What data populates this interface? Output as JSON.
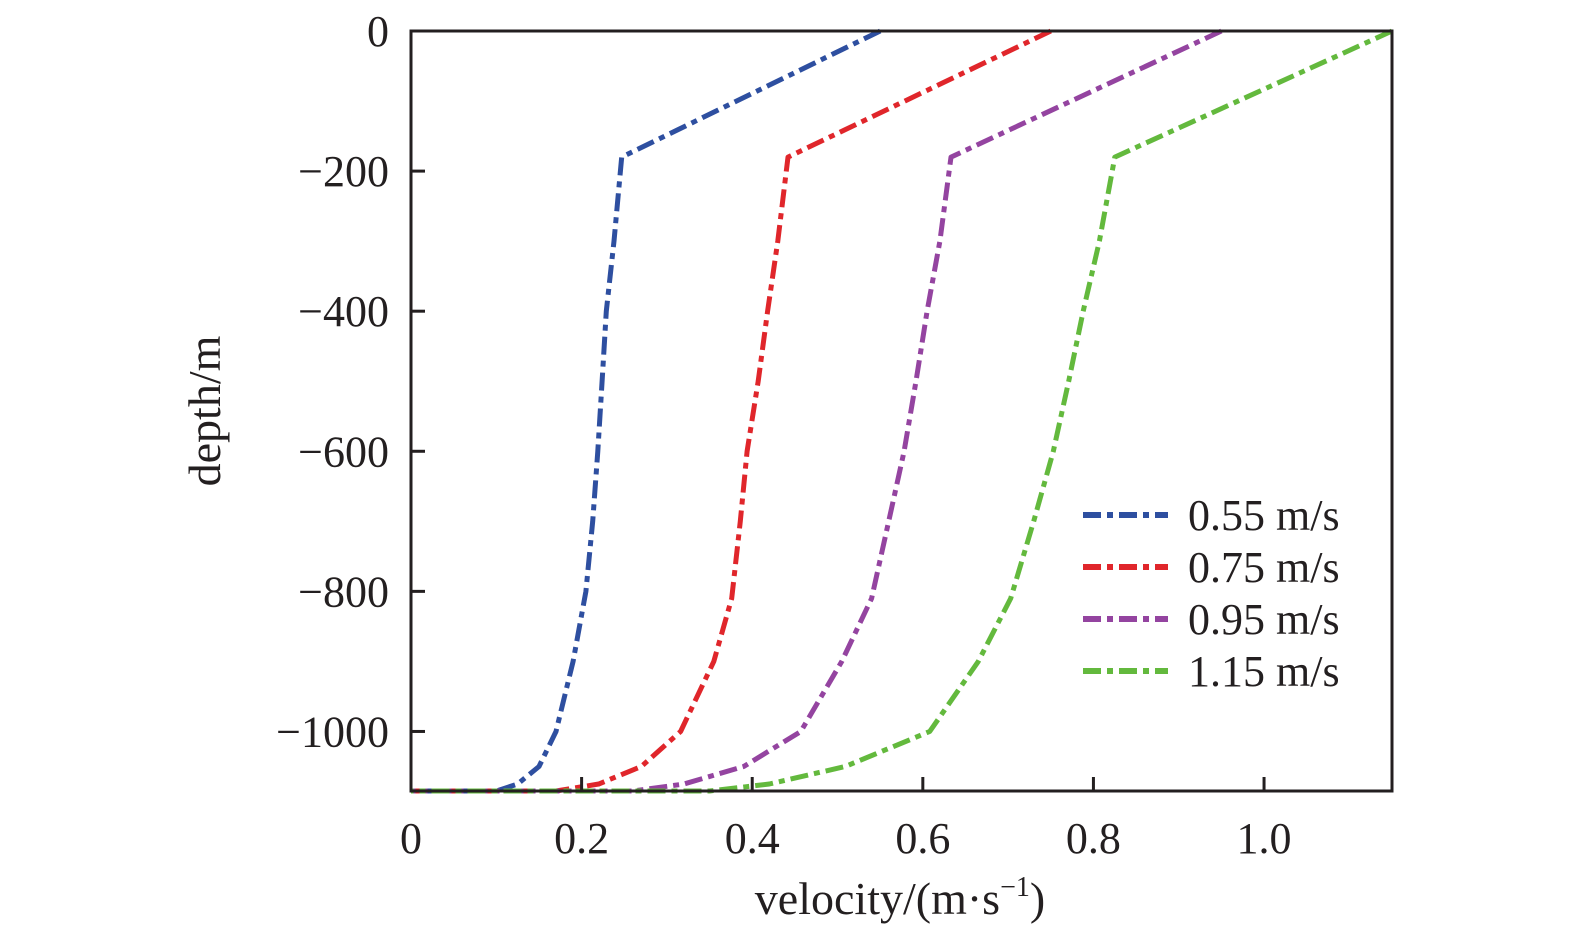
{
  "chart_data": {
    "type": "line",
    "title": "",
    "xlabel": "velocity/(m·s",
    "xlabel_sup": "−1",
    "xlabel_end": ")",
    "ylabel": "depth/m",
    "xlim": [
      0,
      1.15
    ],
    "ylim": [
      -1085,
      0
    ],
    "xticks": [
      0,
      0.2,
      0.4,
      0.6,
      0.8,
      1.0
    ],
    "xtick_labels": [
      "0",
      "0.2",
      "0.4",
      "0.6",
      "0.8",
      "1.0"
    ],
    "yticks": [
      0,
      -200,
      -400,
      -600,
      -800,
      -1000
    ],
    "ytick_labels": [
      "0",
      "−200",
      "−400",
      "−600",
      "−800",
      "−1000"
    ],
    "grid": false,
    "legend_position": "right",
    "line_style": "dash-dot",
    "series": [
      {
        "name": "0.55 m/s",
        "color": "#2e4fa0",
        "points": [
          [
            0.55,
            0
          ],
          [
            0.247,
            -180
          ],
          [
            0.238,
            -300
          ],
          [
            0.229,
            -400
          ],
          [
            0.224,
            -500
          ],
          [
            0.219,
            -600
          ],
          [
            0.213,
            -700
          ],
          [
            0.205,
            -800
          ],
          [
            0.19,
            -900
          ],
          [
            0.17,
            -1000
          ],
          [
            0.15,
            -1050
          ],
          [
            0.125,
            -1075
          ],
          [
            0.1,
            -1085
          ],
          [
            0,
            -1085
          ]
        ]
      },
      {
        "name": "0.75 m/s",
        "color": "#e0262b",
        "points": [
          [
            0.75,
            0
          ],
          [
            0.442,
            -180
          ],
          [
            0.43,
            -300
          ],
          [
            0.418,
            -400
          ],
          [
            0.407,
            -500
          ],
          [
            0.394,
            -600
          ],
          [
            0.386,
            -700
          ],
          [
            0.376,
            -810
          ],
          [
            0.355,
            -900
          ],
          [
            0.316,
            -1000
          ],
          [
            0.27,
            -1050
          ],
          [
            0.22,
            -1075
          ],
          [
            0.17,
            -1085
          ],
          [
            0,
            -1085
          ]
        ]
      },
      {
        "name": "0.95 m/s",
        "color": "#9444a0",
        "points": [
          [
            0.95,
            0
          ],
          [
            0.633,
            -180
          ],
          [
            0.62,
            -300
          ],
          [
            0.605,
            -400
          ],
          [
            0.592,
            -500
          ],
          [
            0.578,
            -600
          ],
          [
            0.56,
            -700
          ],
          [
            0.54,
            -810
          ],
          [
            0.505,
            -900
          ],
          [
            0.457,
            -1000
          ],
          [
            0.39,
            -1050
          ],
          [
            0.32,
            -1075
          ],
          [
            0.26,
            -1085
          ],
          [
            0,
            -1085
          ]
        ]
      },
      {
        "name": "1.15 m/s",
        "color": "#63b93d",
        "points": [
          [
            1.15,
            0
          ],
          [
            0.825,
            -180
          ],
          [
            0.807,
            -300
          ],
          [
            0.788,
            -400
          ],
          [
            0.771,
            -500
          ],
          [
            0.753,
            -600
          ],
          [
            0.73,
            -700
          ],
          [
            0.703,
            -810
          ],
          [
            0.665,
            -900
          ],
          [
            0.608,
            -1000
          ],
          [
            0.509,
            -1050
          ],
          [
            0.42,
            -1075
          ],
          [
            0.35,
            -1085
          ],
          [
            0,
            -1085
          ]
        ]
      }
    ]
  }
}
